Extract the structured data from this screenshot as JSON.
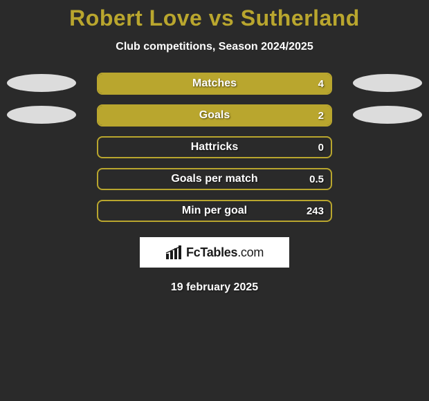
{
  "title": "Robert Love vs Sutherland",
  "subtitle": "Club competitions, Season 2024/2025",
  "colors": {
    "accent": "#b9a62e",
    "bar_border": "#b9a62e",
    "bar_fill": "#b9a62e",
    "ellipse_left": "#dcdcdc",
    "ellipse_right": "#dcdcdc",
    "title": "#b9a62e",
    "background": "#2a2a2a",
    "text": "#ffffff"
  },
  "rows": [
    {
      "label": "Matches",
      "value": "4",
      "fill_pct": 100,
      "show_left_ellipse": true,
      "show_right_ellipse": true
    },
    {
      "label": "Goals",
      "value": "2",
      "fill_pct": 100,
      "show_left_ellipse": true,
      "show_right_ellipse": true
    },
    {
      "label": "Hattricks",
      "value": "0",
      "fill_pct": 0,
      "show_left_ellipse": false,
      "show_right_ellipse": false
    },
    {
      "label": "Goals per match",
      "value": "0.5",
      "fill_pct": 0,
      "show_left_ellipse": false,
      "show_right_ellipse": false
    },
    {
      "label": "Min per goal",
      "value": "243",
      "fill_pct": 0,
      "show_left_ellipse": false,
      "show_right_ellipse": false
    }
  ],
  "logo": {
    "brand": "FcTables",
    "suffix": ".com"
  },
  "date": "19 february 2025"
}
